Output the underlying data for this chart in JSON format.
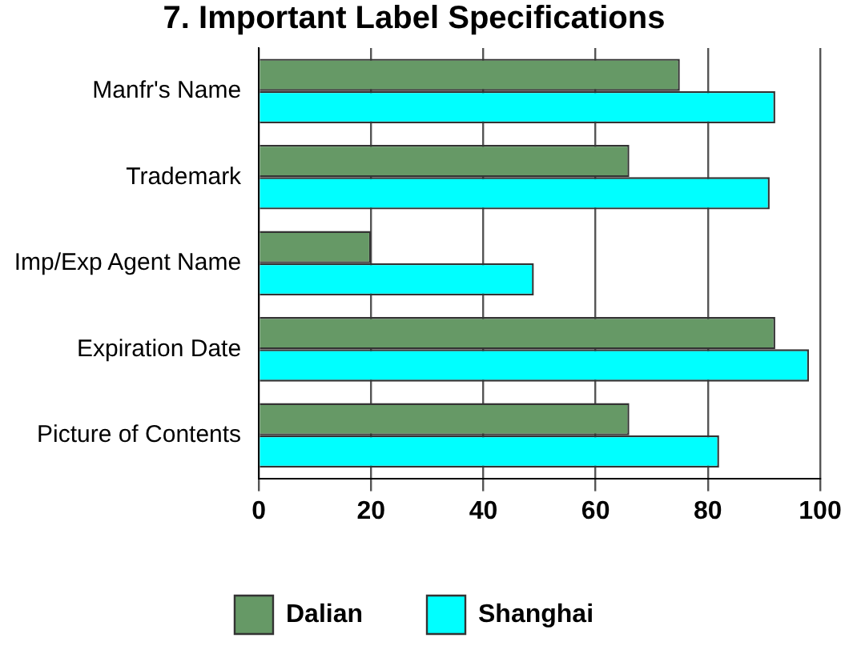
{
  "chart_data": {
    "type": "bar",
    "orientation": "horizontal",
    "title": "7. Important Label Specifications",
    "categories": [
      "Manfr's Name",
      "Trademark",
      "Imp/Exp Agent Name",
      "Expiration Date",
      "Picture of Contents"
    ],
    "series": [
      {
        "name": "Dalian",
        "color": "#669966",
        "values": [
          75,
          66,
          20,
          92,
          66
        ]
      },
      {
        "name": "Shanghai",
        "color": "#00ffff",
        "values": [
          92,
          91,
          49,
          98,
          82
        ]
      }
    ],
    "xlim": [
      0,
      100
    ],
    "xticks": [
      0,
      20,
      40,
      60,
      80,
      100
    ],
    "grid": "x",
    "legend": "bottom"
  }
}
